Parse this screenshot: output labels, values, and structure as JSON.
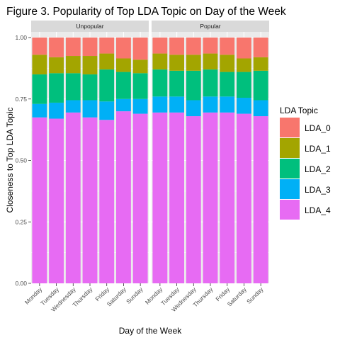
{
  "chart_data": {
    "type": "bar",
    "stacked": true,
    "title": "Figure 3. Popularity of Top LDA Topic on Day of the Week",
    "xlabel": "Day of the Week",
    "ylabel": "Closeness to Top LDA Topic",
    "ylim": [
      0,
      1
    ],
    "yticks": [
      "0.00",
      "0.25",
      "0.50",
      "0.75",
      "1.00"
    ],
    "grid": true,
    "legend_position": "right",
    "legend_title": "LDA Topic",
    "categories": [
      "Monday",
      "Tuesday",
      "Wednesday",
      "Thursday",
      "Friday",
      "Saturday",
      "Sunday"
    ],
    "series_order_bottom_to_top": [
      "LDA_4",
      "LDA_3",
      "LDA_2",
      "LDA_1",
      "LDA_0"
    ],
    "series_colors": {
      "LDA_0": "#F8766D",
      "LDA_1": "#A3A500",
      "LDA_2": "#00BF7D",
      "LDA_3": "#00B0F6",
      "LDA_4": "#E76BF3"
    },
    "facets": [
      {
        "label": "Unpopular",
        "series": [
          {
            "name": "LDA_4",
            "values": [
              0.675,
              0.67,
              0.695,
              0.675,
              0.665,
              0.7,
              0.69
            ]
          },
          {
            "name": "LDA_3",
            "values": [
              0.055,
              0.065,
              0.05,
              0.07,
              0.075,
              0.05,
              0.06
            ]
          },
          {
            "name": "LDA_2",
            "values": [
              0.12,
              0.12,
              0.11,
              0.105,
              0.13,
              0.11,
              0.105
            ]
          },
          {
            "name": "LDA_1",
            "values": [
              0.08,
              0.065,
              0.07,
              0.075,
              0.065,
              0.055,
              0.055
            ]
          },
          {
            "name": "LDA_0",
            "values": [
              0.07,
              0.08,
              0.075,
              0.075,
              0.065,
              0.085,
              0.09
            ]
          }
        ]
      },
      {
        "label": "Popular",
        "series": [
          {
            "name": "LDA_4",
            "values": [
              0.695,
              0.695,
              0.68,
              0.695,
              0.695,
              0.69,
              0.68
            ]
          },
          {
            "name": "LDA_3",
            "values": [
              0.065,
              0.065,
              0.065,
              0.065,
              0.065,
              0.065,
              0.065
            ]
          },
          {
            "name": "LDA_2",
            "values": [
              0.11,
              0.105,
              0.12,
              0.11,
              0.1,
              0.105,
              0.12
            ]
          },
          {
            "name": "LDA_1",
            "values": [
              0.065,
              0.065,
              0.065,
              0.065,
              0.07,
              0.055,
              0.055
            ]
          },
          {
            "name": "LDA_0",
            "values": [
              0.065,
              0.07,
              0.07,
              0.065,
              0.07,
              0.085,
              0.08
            ]
          }
        ]
      }
    ]
  }
}
